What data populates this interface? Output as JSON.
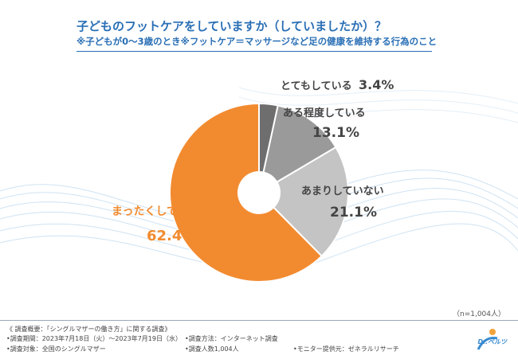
{
  "title": "子どものフットケアをしていますか（していましたか）？",
  "subtitle": "※子どもが0～3歳のとき※フットケア＝マッサージなど足の健康を維持する行為のこと",
  "chart_data": {
    "type": "pie",
    "donut": true,
    "title": "子どものフットケアをしていますか（していましたか）？",
    "slices": [
      {
        "label": "とてもしている",
        "value": 3.4,
        "value_label": "3.4%",
        "color": "#6e6e6e"
      },
      {
        "label": "ある程度している",
        "value": 13.1,
        "value_label": "13.1%",
        "color": "#9a9a9a"
      },
      {
        "label": "あまりしていない",
        "value": 21.1,
        "value_label": "21.1%",
        "color": "#c4c4c4"
      },
      {
        "label": "まったくしていない",
        "value": 62.4,
        "value_label": "62.4%",
        "color": "#f28b30"
      }
    ],
    "sample_size": "（n=1,004人）"
  },
  "footer": {
    "summary": "《 調査概要：「シングルマザーの働き方」に関する調査》",
    "period": "•調査期間：2023年7月18日（火）～2023年7月19日（水）",
    "method": "•調査方法：インターネット調査",
    "target": "•調査対象：全国のシングルマザー",
    "count": "•調査人数1,004人",
    "provider": "•モニター提供元：ゼネラルリサーチ"
  },
  "logo": {
    "text": "Dr.ベルツ"
  }
}
